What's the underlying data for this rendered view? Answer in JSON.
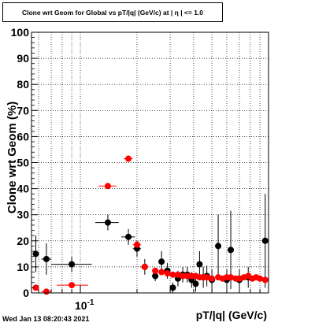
{
  "title": "Clone wrt Geom for Global vs pT/|q| (GeV/c) at | η | <= 1.0",
  "footer": "Wed Jan 13 08:20:43 2021",
  "chart_data": {
    "type": "scatter",
    "xlabel": "pT/|q| (GeV/c)",
    "ylabel": "Clone wrt Geom (%)",
    "x_scale": "log",
    "xlim": [
      0.055,
      1.0
    ],
    "ylim": [
      0,
      100
    ],
    "y_ticks": [
      0,
      10,
      20,
      30,
      40,
      50,
      60,
      70,
      80,
      90,
      100
    ],
    "x_tick_label": "10",
    "x_tick_exponent": "-1",
    "grid": true,
    "series": [
      {
        "color": "#000000",
        "points": [
          {
            "x": 0.058,
            "y": 15,
            "xerr": [
              0.056,
              0.06
            ],
            "yerr": 7
          },
          {
            "x": 0.066,
            "y": 13,
            "xerr": [
              0.062,
              0.07
            ],
            "yerr": 6
          },
          {
            "x": 0.09,
            "y": 11,
            "xerr": [
              0.07,
              0.115
            ],
            "yerr": 3
          },
          {
            "x": 0.14,
            "y": 27,
            "xerr": [
              0.12,
              0.16
            ],
            "yerr": 3
          },
          {
            "x": 0.18,
            "y": 21.5,
            "xerr": [
              0.165,
              0.195
            ],
            "yerr": 3
          },
          {
            "x": 0.2,
            "y": 17,
            "xerr": [
              0.19,
              0.21
            ],
            "yerr": 3
          },
          {
            "x": 0.22,
            "y": 10,
            "xerr": [
              0.21,
              0.23
            ],
            "yerr": 3
          },
          {
            "x": 0.25,
            "y": 6.5,
            "xerr": [
              0.24,
              0.26
            ],
            "yerr": 2
          },
          {
            "x": 0.27,
            "y": 12,
            "xerr": [
              0.26,
              0.28
            ],
            "yerr": 4
          },
          {
            "x": 0.29,
            "y": 8.5,
            "xerr": [
              0.28,
              0.3
            ],
            "yerr": 3
          },
          {
            "x": 0.31,
            "y": 2,
            "xerr": [
              0.3,
              0.32
            ],
            "yerr": 2
          },
          {
            "x": 0.33,
            "y": 5.5,
            "xerr": [
              0.32,
              0.34
            ],
            "yerr": 3
          },
          {
            "x": 0.35,
            "y": 7,
            "xerr": [
              0.34,
              0.36
            ],
            "yerr": 3
          },
          {
            "x": 0.37,
            "y": 7,
            "xerr": [
              0.36,
              0.38
            ],
            "yerr": 3
          },
          {
            "x": 0.39,
            "y": 5,
            "xerr": [
              0.38,
              0.4
            ],
            "yerr": 3
          },
          {
            "x": 0.41,
            "y": 3.5,
            "xerr": [
              0.4,
              0.42
            ],
            "yerr": 3
          },
          {
            "x": 0.43,
            "y": 11,
            "xerr": [
              0.42,
              0.44
            ],
            "yerr": 5
          },
          {
            "x": 0.45,
            "y": 6,
            "xerr": [
              0.44,
              0.46
            ],
            "yerr": 4
          },
          {
            "x": 0.47,
            "y": 6.5,
            "xerr": [
              0.46,
              0.48
            ],
            "yerr": 4
          },
          {
            "x": 0.5,
            "y": 5,
            "xerr": [
              0.48,
              0.52
            ],
            "yerr": 4
          },
          {
            "x": 0.54,
            "y": 18,
            "xerr": [
              0.52,
              0.56
            ],
            "yerr": 12
          },
          {
            "x": 0.6,
            "y": 5,
            "xerr": [
              0.58,
              0.62
            ],
            "yerr": 4
          },
          {
            "x": 0.63,
            "y": 16.5,
            "xerr": [
              0.61,
              0.65
            ],
            "yerr": 15
          },
          {
            "x": 0.7,
            "y": 5,
            "xerr": [
              0.67,
              0.73
            ],
            "yerr": 4
          },
          {
            "x": 0.78,
            "y": 6,
            "xerr": [
              0.75,
              0.81
            ],
            "yerr": 4
          },
          {
            "x": 0.96,
            "y": 20,
            "xerr": [
              0.93,
              0.99
            ],
            "yerr": 18
          }
        ]
      },
      {
        "color": "#ff0000",
        "points": [
          {
            "x": 0.058,
            "y": 2,
            "xerr": [
              0.056,
              0.06
            ],
            "yerr": 0.5
          },
          {
            "x": 0.066,
            "y": 0.5,
            "xerr": [
              0.062,
              0.07
            ],
            "yerr": 0.3
          },
          {
            "x": 0.09,
            "y": 3,
            "xerr": [
              0.075,
              0.11
            ],
            "yerr": 0.5
          },
          {
            "x": 0.14,
            "y": 41,
            "xerr": [
              0.125,
              0.155
            ],
            "yerr": 0.5
          },
          {
            "x": 0.18,
            "y": 51.5,
            "xerr": [
              0.17,
              0.19
            ],
            "yerr": 0.5
          },
          {
            "x": 0.2,
            "y": 18.5,
            "xerr": [
              0.19,
              0.21
            ],
            "yerr": 1
          },
          {
            "x": 0.22,
            "y": 10,
            "xerr": [
              0.21,
              0.23
            ],
            "yerr": 1
          },
          {
            "x": 0.25,
            "y": 8.5,
            "xerr": [
              0.24,
              0.26
            ],
            "yerr": 1
          },
          {
            "x": 0.27,
            "y": 8,
            "xerr": [
              0.26,
              0.28
            ],
            "yerr": 1
          },
          {
            "x": 0.29,
            "y": 7.5,
            "xerr": [
              0.28,
              0.3
            ],
            "yerr": 1
          },
          {
            "x": 0.31,
            "y": 7,
            "xerr": [
              0.3,
              0.32
            ],
            "yerr": 1
          },
          {
            "x": 0.33,
            "y": 7,
            "xerr": [
              0.32,
              0.34
            ],
            "yerr": 1
          },
          {
            "x": 0.35,
            "y": 6.5,
            "xerr": [
              0.34,
              0.36
            ],
            "yerr": 1
          },
          {
            "x": 0.37,
            "y": 6.5,
            "xerr": [
              0.36,
              0.38
            ],
            "yerr": 1
          },
          {
            "x": 0.39,
            "y": 6.5,
            "xerr": [
              0.38,
              0.4
            ],
            "yerr": 1
          },
          {
            "x": 0.41,
            "y": 6.5,
            "xerr": [
              0.4,
              0.42
            ],
            "yerr": 1
          },
          {
            "x": 0.43,
            "y": 6,
            "xerr": [
              0.42,
              0.44
            ],
            "yerr": 1
          },
          {
            "x": 0.45,
            "y": 6,
            "xerr": [
              0.44,
              0.46
            ],
            "yerr": 1
          },
          {
            "x": 0.47,
            "y": 6,
            "xerr": [
              0.46,
              0.48
            ],
            "yerr": 1
          },
          {
            "x": 0.5,
            "y": 5.5,
            "xerr": [
              0.48,
              0.52
            ],
            "yerr": 1
          },
          {
            "x": 0.54,
            "y": 6,
            "xerr": [
              0.52,
              0.56
            ],
            "yerr": 1
          },
          {
            "x": 0.57,
            "y": 5.5,
            "xerr": [
              0.56,
              0.58
            ],
            "yerr": 1
          },
          {
            "x": 0.6,
            "y": 6,
            "xerr": [
              0.58,
              0.62
            ],
            "yerr": 1
          },
          {
            "x": 0.63,
            "y": 6,
            "xerr": [
              0.62,
              0.65
            ],
            "yerr": 1
          },
          {
            "x": 0.67,
            "y": 5.5,
            "xerr": [
              0.65,
              0.69
            ],
            "yerr": 1
          },
          {
            "x": 0.7,
            "y": 5.5,
            "xerr": [
              0.69,
              0.72
            ],
            "yerr": 1
          },
          {
            "x": 0.74,
            "y": 6,
            "xerr": [
              0.72,
              0.76
            ],
            "yerr": 1
          },
          {
            "x": 0.78,
            "y": 6.5,
            "xerr": [
              0.76,
              0.8
            ],
            "yerr": 1
          },
          {
            "x": 0.82,
            "y": 5.5,
            "xerr": [
              0.8,
              0.84
            ],
            "yerr": 1
          },
          {
            "x": 0.86,
            "y": 6,
            "xerr": [
              0.84,
              0.88
            ],
            "yerr": 1
          },
          {
            "x": 0.9,
            "y": 5.5,
            "xerr": [
              0.88,
              0.92
            ],
            "yerr": 1
          },
          {
            "x": 0.96,
            "y": 5,
            "xerr": [
              0.93,
              0.99
            ],
            "yerr": 1
          }
        ]
      }
    ]
  }
}
